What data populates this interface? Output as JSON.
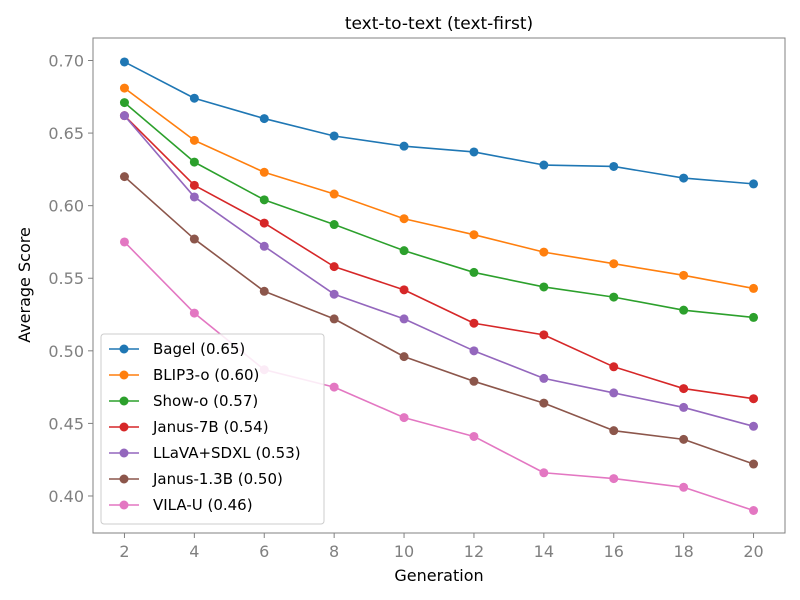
{
  "chart_data": {
    "type": "line",
    "title": "text-to-text (text-first)",
    "xlabel": "Generation",
    "ylabel": "Average Score",
    "x": [
      2,
      4,
      6,
      8,
      10,
      12,
      14,
      16,
      18,
      20
    ],
    "xticks": [
      "2",
      "4",
      "6",
      "8",
      "10",
      "12",
      "14",
      "16",
      "18",
      "20"
    ],
    "yticks": [
      "0.40",
      "0.45",
      "0.50",
      "0.55",
      "0.60",
      "0.65",
      "0.70"
    ],
    "ytick_values": [
      0.4,
      0.45,
      0.5,
      0.55,
      0.6,
      0.65,
      0.7
    ],
    "xlim": [
      1.1,
      20.9
    ],
    "ylim": [
      0.3745,
      0.7155
    ],
    "grid": false,
    "legend_position": "lower-left",
    "series": [
      {
        "name": "Bagel (0.65)",
        "color": "#1f77b4",
        "values": [
          0.699,
          0.674,
          0.66,
          0.648,
          0.641,
          0.637,
          0.628,
          0.627,
          0.619,
          0.615
        ]
      },
      {
        "name": "BLIP3-o (0.60)",
        "color": "#ff7f0e",
        "values": [
          0.681,
          0.645,
          0.623,
          0.608,
          0.591,
          0.58,
          0.568,
          0.56,
          0.552,
          0.543
        ]
      },
      {
        "name": "Show-o (0.57)",
        "color": "#2ca02c",
        "values": [
          0.671,
          0.63,
          0.604,
          0.587,
          0.569,
          0.554,
          0.544,
          0.537,
          0.528,
          0.523
        ]
      },
      {
        "name": "Janus-7B (0.54)",
        "color": "#d62728",
        "values": [
          0.662,
          0.614,
          0.588,
          0.558,
          0.542,
          0.519,
          0.511,
          0.489,
          0.474,
          0.467
        ]
      },
      {
        "name": "LLaVA+SDXL (0.53)",
        "color": "#9467bd",
        "values": [
          0.662,
          0.606,
          0.572,
          0.539,
          0.522,
          0.5,
          0.481,
          0.471,
          0.461,
          0.448
        ]
      },
      {
        "name": "Janus-1.3B (0.50)",
        "color": "#8c564b",
        "values": [
          0.62,
          0.577,
          0.541,
          0.522,
          0.496,
          0.479,
          0.464,
          0.445,
          0.439,
          0.422
        ]
      },
      {
        "name": "VILA-U (0.46)",
        "color": "#e377c2",
        "values": [
          0.575,
          0.526,
          0.487,
          0.475,
          0.454,
          0.441,
          0.416,
          0.412,
          0.406,
          0.39
        ]
      }
    ]
  }
}
